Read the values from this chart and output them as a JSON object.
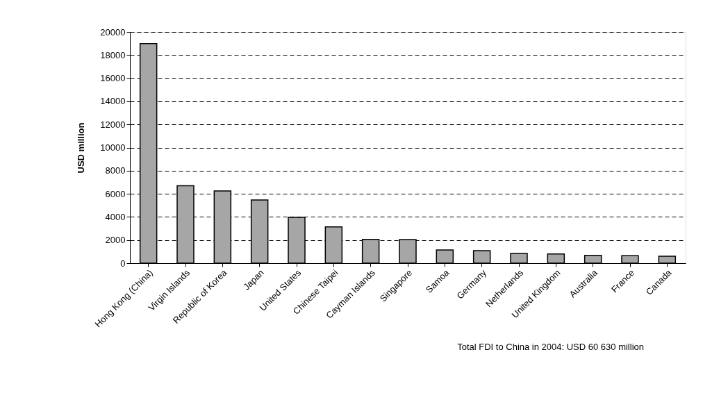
{
  "chart_data": {
    "type": "bar",
    "ylabel": "USD million",
    "categories": [
      "Hong Kong (China)",
      "Virgin Islands",
      "Republic of Korea",
      "Japan",
      "United States",
      "Chinese Taipei",
      "Cayman Islands",
      "Singapore",
      "Samoa",
      "Germany",
      "Netherlands",
      "United Kingdom",
      "Australia",
      "France",
      "Canada"
    ],
    "values": [
      19000,
      6700,
      6240,
      5460,
      3960,
      3140,
      2060,
      2040,
      1140,
      1080,
      840,
      800,
      680,
      640,
      600
    ],
    "color": "#a6a6a6",
    "ylim": [
      0,
      20000
    ],
    "yticks": [
      0,
      2000,
      4000,
      6000,
      8000,
      10000,
      12000,
      14000,
      16000,
      18000,
      20000
    ],
    "grid": "y",
    "annotations": [
      "Total FDI to China in 2004: USD 60 630 million"
    ]
  }
}
